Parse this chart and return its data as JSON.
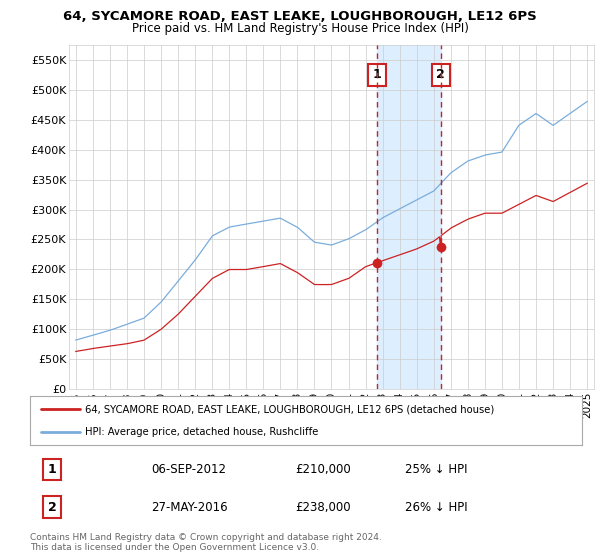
{
  "title": "64, SYCAMORE ROAD, EAST LEAKE, LOUGHBOROUGH, LE12 6PS",
  "subtitle": "Price paid vs. HM Land Registry's House Price Index (HPI)",
  "legend_line1": "64, SYCAMORE ROAD, EAST LEAKE, LOUGHBOROUGH, LE12 6PS (detached house)",
  "legend_line2": "HPI: Average price, detached house, Rushcliffe",
  "transaction1_date": "06-SEP-2012",
  "transaction1_price": "£210,000",
  "transaction1_hpi": "25% ↓ HPI",
  "transaction2_date": "27-MAY-2016",
  "transaction2_price": "£238,000",
  "transaction2_hpi": "26% ↓ HPI",
  "footer1": "Contains HM Land Registry data © Crown copyright and database right 2024.",
  "footer2": "This data is licensed under the Open Government Licence v3.0.",
  "ylim": [
    0,
    575000
  ],
  "yticks": [
    0,
    50000,
    100000,
    150000,
    200000,
    250000,
    300000,
    350000,
    400000,
    450000,
    500000,
    550000
  ],
  "hpi_color": "#7aaddc",
  "price_color": "#cc2222",
  "marker_box_color": "#cc2222",
  "shade_color": "#ddeeff",
  "grid_color": "#cccccc",
  "bg_color": "#ffffff",
  "transaction1_x": 2012.68,
  "transaction2_x": 2016.41,
  "hpi_knots_x": [
    1995,
    1996,
    1997,
    1998,
    1999,
    2000,
    2001,
    2002,
    2003,
    2004,
    2005,
    2006,
    2007,
    2008,
    2009,
    2010,
    2011,
    2012,
    2013,
    2014,
    2015,
    2016,
    2017,
    2018,
    2019,
    2020,
    2021,
    2022,
    2023,
    2024,
    2025
  ],
  "hpi_knots_y": [
    82000,
    90000,
    98000,
    108000,
    118000,
    145000,
    180000,
    215000,
    255000,
    270000,
    275000,
    280000,
    285000,
    270000,
    245000,
    240000,
    250000,
    265000,
    285000,
    300000,
    315000,
    330000,
    360000,
    380000,
    390000,
    395000,
    440000,
    460000,
    440000,
    460000,
    480000
  ],
  "red_knots_x": [
    1995,
    1996,
    1997,
    1998,
    1999,
    2000,
    2001,
    2002,
    2003,
    2004,
    2005,
    2006,
    2007,
    2008,
    2009,
    2010,
    2011,
    2012,
    2013,
    2014,
    2015,
    2016,
    2017,
    2018,
    2019,
    2020,
    2021,
    2022,
    2023,
    2024,
    2025
  ],
  "red_knots_y": [
    63000,
    68000,
    72000,
    76000,
    82000,
    100000,
    125000,
    155000,
    185000,
    200000,
    200000,
    205000,
    210000,
    195000,
    175000,
    175000,
    185000,
    205000,
    215000,
    225000,
    235000,
    248000,
    270000,
    285000,
    295000,
    295000,
    310000,
    325000,
    315000,
    330000,
    345000
  ]
}
